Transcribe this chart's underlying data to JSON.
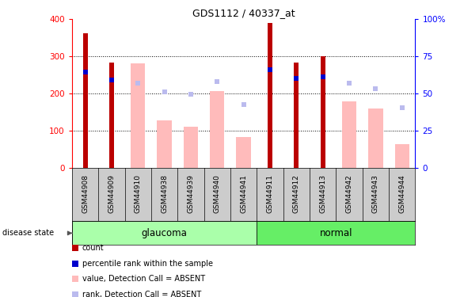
{
  "title": "GDS1112 / 40337_at",
  "samples": [
    "GSM44908",
    "GSM44909",
    "GSM44910",
    "GSM44938",
    "GSM44939",
    "GSM44940",
    "GSM44941",
    "GSM44911",
    "GSM44912",
    "GSM44913",
    "GSM44942",
    "GSM44943",
    "GSM44944"
  ],
  "count_values": [
    362,
    283,
    null,
    null,
    null,
    null,
    null,
    390,
    284,
    300,
    null,
    null,
    null
  ],
  "percentile_values": [
    258,
    237,
    null,
    null,
    null,
    null,
    null,
    265,
    240,
    245,
    null,
    null,
    null
  ],
  "absent_value": [
    null,
    null,
    282,
    127,
    110,
    207,
    83,
    null,
    null,
    null,
    180,
    160,
    63
  ],
  "absent_rank": [
    null,
    null,
    228,
    205,
    198,
    232,
    170,
    null,
    null,
    null,
    227,
    213,
    162
  ],
  "glaucoma_indices": [
    0,
    1,
    2,
    3,
    4,
    5,
    6
  ],
  "normal_indices": [
    7,
    8,
    9,
    10,
    11,
    12
  ],
  "ylim": [
    0,
    400
  ],
  "yticks": [
    0,
    100,
    200,
    300,
    400
  ],
  "y2ticks": [
    0,
    25,
    50,
    75,
    100
  ],
  "y2tick_labels": [
    "0",
    "25",
    "50",
    "75",
    "100%"
  ],
  "count_color": "#bb0000",
  "percentile_color": "#0000cc",
  "absent_value_color": "#ffbbbb",
  "absent_rank_color": "#bbbbee",
  "glaucoma_bg": "#aaffaa",
  "normal_bg": "#66ee66",
  "label_bg": "#cccccc",
  "plot_bg": "#ffffff",
  "absent_bar_width": 0.55,
  "count_bar_width": 0.18
}
